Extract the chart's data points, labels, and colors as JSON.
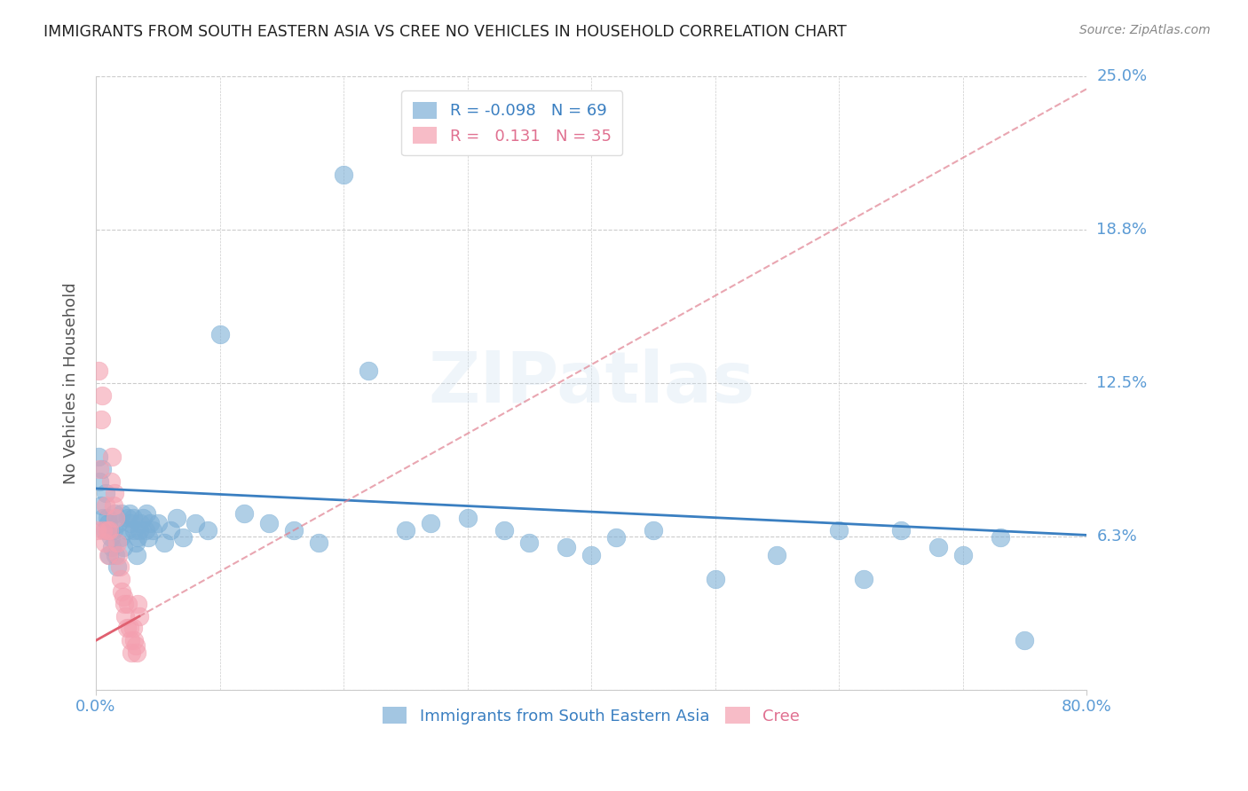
{
  "title": "IMMIGRANTS FROM SOUTH EASTERN ASIA VS CREE NO VEHICLES IN HOUSEHOLD CORRELATION CHART",
  "source": "Source: ZipAtlas.com",
  "ylabel": "No Vehicles in Household",
  "xlim": [
    0.0,
    0.8
  ],
  "ylim": [
    0.0,
    0.25
  ],
  "ytick_vals": [
    0.0,
    0.0625,
    0.125,
    0.1875,
    0.25
  ],
  "ytick_labels": [
    "",
    "6.3%",
    "12.5%",
    "18.8%",
    "25.0%"
  ],
  "xtick_vals": [
    0.0,
    0.8
  ],
  "xtick_labels": [
    "0.0%",
    "80.0%"
  ],
  "xgrid_vals": [
    0.1,
    0.2,
    0.3,
    0.4,
    0.5,
    0.6,
    0.7
  ],
  "grid_color": "#cccccc",
  "bg_color": "#ffffff",
  "blue_color": "#7cafd6",
  "pink_color": "#f4a0b0",
  "blue_line_color": "#3a7fc1",
  "pink_line_color": "#e08090",
  "blue_R": -0.098,
  "blue_N": 69,
  "pink_R": 0.131,
  "pink_N": 35,
  "watermark": "ZIPatlas",
  "legend_blue_label": "Immigrants from South Eastern Asia",
  "legend_pink_label": "Cree",
  "axis_label_color": "#5b9bd5",
  "title_color": "#222222",
  "blue_line_start_y": 0.082,
  "blue_line_end_y": 0.063,
  "pink_line_start_x": 0.0,
  "pink_line_start_y": 0.02,
  "pink_line_end_x": 0.8,
  "pink_line_end_y": 0.245,
  "blue_scatter_x": [
    0.002,
    0.003,
    0.004,
    0.005,
    0.006,
    0.007,
    0.008,
    0.009,
    0.01,
    0.011,
    0.012,
    0.013,
    0.014,
    0.015,
    0.016,
    0.017,
    0.018,
    0.02,
    0.021,
    0.022,
    0.025,
    0.026,
    0.027,
    0.028,
    0.03,
    0.031,
    0.032,
    0.033,
    0.034,
    0.035,
    0.036,
    0.038,
    0.04,
    0.041,
    0.042,
    0.044,
    0.046,
    0.05,
    0.055,
    0.06,
    0.065,
    0.07,
    0.08,
    0.09,
    0.1,
    0.12,
    0.14,
    0.16,
    0.18,
    0.2,
    0.22,
    0.25,
    0.27,
    0.3,
    0.33,
    0.35,
    0.38,
    0.4,
    0.42,
    0.45,
    0.5,
    0.55,
    0.6,
    0.62,
    0.65,
    0.68,
    0.7,
    0.73,
    0.75
  ],
  "blue_scatter_y": [
    0.095,
    0.085,
    0.075,
    0.09,
    0.07,
    0.065,
    0.08,
    0.07,
    0.068,
    0.055,
    0.062,
    0.058,
    0.065,
    0.072,
    0.055,
    0.05,
    0.068,
    0.062,
    0.072,
    0.058,
    0.065,
    0.07,
    0.072,
    0.068,
    0.07,
    0.065,
    0.06,
    0.055,
    0.062,
    0.065,
    0.068,
    0.07,
    0.065,
    0.072,
    0.062,
    0.068,
    0.065,
    0.068,
    0.06,
    0.065,
    0.07,
    0.062,
    0.068,
    0.065,
    0.145,
    0.072,
    0.068,
    0.065,
    0.06,
    0.21,
    0.13,
    0.065,
    0.068,
    0.07,
    0.065,
    0.06,
    0.058,
    0.055,
    0.062,
    0.065,
    0.045,
    0.055,
    0.065,
    0.045,
    0.065,
    0.058,
    0.055,
    0.062,
    0.02
  ],
  "pink_scatter_x": [
    0.001,
    0.002,
    0.003,
    0.004,
    0.005,
    0.006,
    0.007,
    0.008,
    0.009,
    0.01,
    0.011,
    0.012,
    0.013,
    0.014,
    0.015,
    0.016,
    0.017,
    0.018,
    0.019,
    0.02,
    0.021,
    0.022,
    0.023,
    0.024,
    0.025,
    0.026,
    0.027,
    0.028,
    0.029,
    0.03,
    0.031,
    0.032,
    0.033,
    0.034,
    0.035
  ],
  "pink_scatter_y": [
    0.065,
    0.13,
    0.09,
    0.11,
    0.12,
    0.065,
    0.06,
    0.075,
    0.065,
    0.055,
    0.065,
    0.085,
    0.095,
    0.075,
    0.08,
    0.07,
    0.06,
    0.055,
    0.05,
    0.045,
    0.04,
    0.038,
    0.035,
    0.03,
    0.025,
    0.035,
    0.025,
    0.02,
    0.015,
    0.025,
    0.02,
    0.018,
    0.015,
    0.035,
    0.03
  ]
}
